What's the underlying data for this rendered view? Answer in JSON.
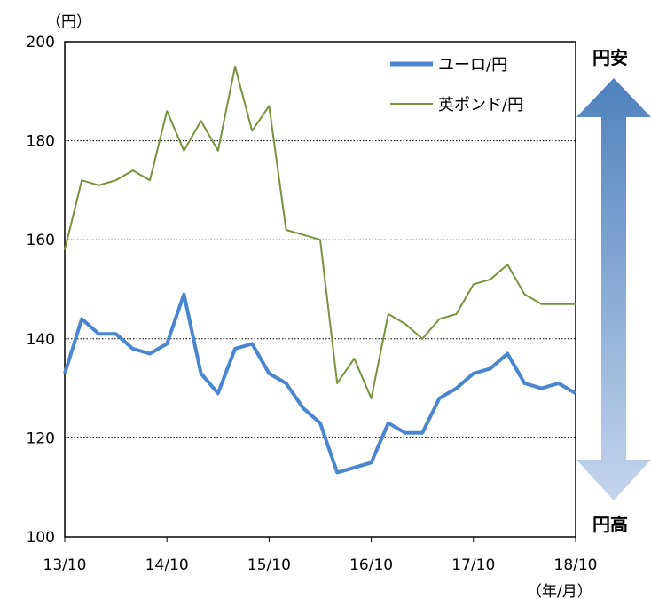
{
  "chart_data": {
    "type": "line",
    "y_unit": "（円）",
    "x_unit": "（年/月）",
    "ylim": [
      100,
      200
    ],
    "y_ticks": [
      "100",
      "120",
      "140",
      "160",
      "180",
      "200"
    ],
    "x_ticks": [
      "13/10",
      "14/10",
      "15/10",
      "16/10",
      "17/10",
      "18/10"
    ],
    "grid": "horizontal dotted",
    "legend_position": "top-right",
    "series": [
      {
        "name": "ユーロ/円",
        "color": "#4a86d0",
        "x": [
          "13/10",
          "13/12",
          "14/02",
          "14/04",
          "14/06",
          "14/08",
          "14/10",
          "14/12",
          "15/02",
          "15/04",
          "15/06",
          "15/08",
          "15/10",
          "15/12",
          "16/02",
          "16/04",
          "16/06",
          "16/08",
          "16/10",
          "16/12",
          "17/02",
          "17/04",
          "17/06",
          "17/08",
          "17/10",
          "17/12",
          "18/02",
          "18/04",
          "18/06",
          "18/08",
          "18/10"
        ],
        "values": [
          133,
          144,
          141,
          141,
          138,
          137,
          139,
          149,
          133,
          129,
          138,
          139,
          133,
          131,
          126,
          123,
          113,
          114,
          115,
          123,
          121,
          121,
          128,
          130,
          133,
          134,
          137,
          131,
          130,
          131,
          129
        ]
      },
      {
        "name": "英ポンド/円",
        "color": "#77933c",
        "x": [
          "13/10",
          "13/12",
          "14/02",
          "14/04",
          "14/06",
          "14/08",
          "14/10",
          "14/12",
          "15/02",
          "15/04",
          "15/06",
          "15/08",
          "15/10",
          "15/12",
          "16/02",
          "16/04",
          "16/06",
          "16/08",
          "16/10",
          "16/12",
          "17/02",
          "17/04",
          "17/06",
          "17/08",
          "17/10",
          "17/12",
          "18/02",
          "18/04",
          "18/06",
          "18/08",
          "18/10"
        ],
        "values": [
          158,
          172,
          171,
          172,
          174,
          172,
          186,
          178,
          184,
          178,
          195,
          182,
          187,
          162,
          161,
          160,
          131,
          136,
          128,
          145,
          143,
          140,
          144,
          145,
          151,
          152,
          155,
          149,
          147,
          147,
          147
        ]
      }
    ],
    "annotations": {
      "arrow_top_label": "円安",
      "arrow_bottom_label": "円高"
    }
  }
}
